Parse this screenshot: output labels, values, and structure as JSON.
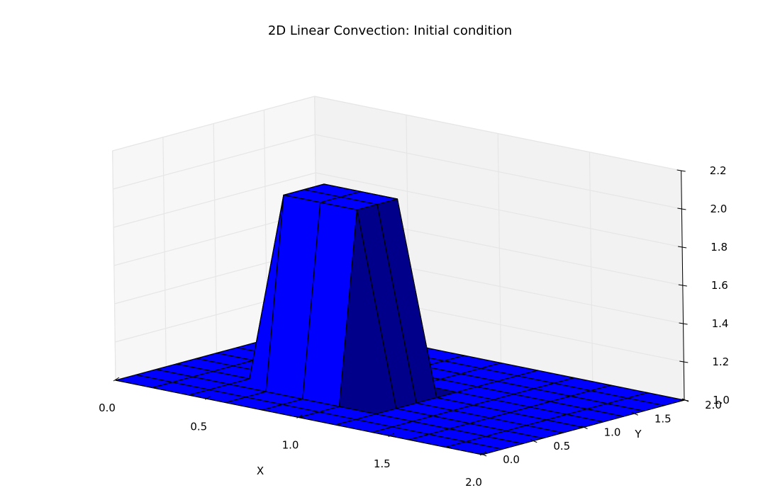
{
  "chart_data": {
    "type": "surface3d",
    "title": "2D Linear Convection: Initial condition",
    "xlabel": "X",
    "ylabel": "Y",
    "zlabel": "",
    "xlim": [
      0,
      2
    ],
    "ylim": [
      0,
      2
    ],
    "zlim": [
      1,
      2.2
    ],
    "x_ticks": [
      "0.0",
      "0.5",
      "1.0",
      "1.5",
      "2.0"
    ],
    "y_ticks": [
      "0.0",
      "0.5",
      "1.0",
      "1.5",
      "2.0"
    ],
    "z_ticks": [
      "1.0",
      "1.2",
      "1.4",
      "1.6",
      "1.8",
      "2.0",
      "2.2"
    ],
    "grid": true,
    "surface_color": "#0000ff",
    "edge_color": "#000000",
    "grid_x": [
      0,
      0.2,
      0.4,
      0.6,
      0.8,
      1.0,
      1.2,
      1.4,
      1.6,
      1.8,
      2.0
    ],
    "grid_y": [
      0,
      0.2,
      0.4,
      0.6,
      0.8,
      1.0,
      1.2,
      1.4,
      1.6,
      1.8,
      2.0
    ],
    "u_base": 1.0,
    "u_pulse": 2.0,
    "pulse_x_range": [
      0.5,
      1.0
    ],
    "pulse_y_range": [
      0.5,
      1.0
    ]
  }
}
